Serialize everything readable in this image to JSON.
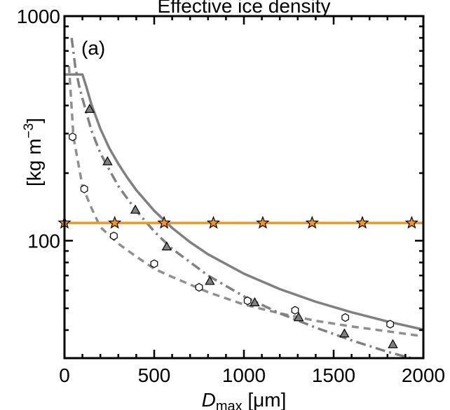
{
  "chart_data": {
    "type": "line",
    "title": "Effective ice density",
    "panel_label": "(a)",
    "xlabel": {
      "main": "D",
      "sub": "max",
      "unit": " [μm]"
    },
    "ylabel": {
      "prefix": "[kg m",
      "exp": "−3",
      "suffix": "]"
    },
    "xlim": [
      0,
      2000
    ],
    "ylim": [
      30,
      1000
    ],
    "yscale": "log",
    "grid": false,
    "x_ticks": [
      "0",
      "500",
      "1000",
      "1500",
      "2000"
    ],
    "x_tick_values": [
      0,
      500,
      1000,
      1500,
      2000
    ],
    "y_ticks": [
      "100",
      "1000"
    ],
    "y_tick_values": [
      100,
      1000
    ],
    "colors": {
      "solid": "#808080",
      "dashed": "#909090",
      "dashdot": "#808080",
      "orange": "#f7931e",
      "triangle_fill": "#808080"
    },
    "series": [
      {
        "style": "solid",
        "x": [
          0,
          60,
          100,
          120,
          150,
          200,
          250,
          300,
          350,
          400,
          500,
          600,
          700,
          800,
          1000,
          1200,
          1400,
          1600,
          1800,
          2000
        ],
        "y": [
          550,
          550,
          550,
          490,
          405,
          315,
          258,
          220,
          191,
          168,
          136,
          114,
          98.5,
          87.0,
          71.3,
          60.9,
          53.5,
          48.0,
          43.7,
          40.2
        ]
      },
      {
        "style": "dashed",
        "x": [
          25,
          50,
          100,
          150,
          200,
          300,
          400,
          500,
          600,
          800,
          1000,
          1200,
          1400,
          1600,
          1800,
          2000
        ],
        "y": [
          600,
          290,
          175,
          140,
          115,
          97,
          85,
          75,
          69,
          59,
          52,
          47.5,
          44,
          41.5,
          39.5,
          37.5
        ]
      },
      {
        "style": "dashdot",
        "x": [
          40,
          60,
          80,
          100,
          150,
          200,
          300,
          400,
          500,
          600,
          800,
          1000,
          1200,
          1400,
          1600,
          1800,
          2000
        ],
        "y": [
          800,
          595,
          495,
          430,
          310,
          245,
          175,
          136,
          110,
          92,
          70,
          56.5,
          47.5,
          41,
          36,
          32,
          29
        ]
      },
      {
        "style": "orange",
        "x": [
          0,
          2000
        ],
        "y": [
          120,
          120
        ]
      }
    ],
    "markers": {
      "hexagon": {
        "x": [
          45,
          110,
          275,
          500,
          750,
          1020,
          1285,
          1565,
          1815
        ],
        "y": [
          290,
          170,
          105,
          79,
          62,
          54,
          49,
          45.5,
          42.5
        ]
      },
      "triangle": {
        "x": [
          140,
          240,
          395,
          570,
          810,
          1060,
          1305,
          1560,
          1830
        ],
        "y": [
          385,
          225,
          137,
          94,
          66,
          53,
          45.5,
          38.5,
          34.5
        ]
      },
      "star": {
        "x": [
          0,
          280,
          555,
          830,
          1105,
          1380,
          1660,
          1935
        ],
        "y": [
          120,
          120,
          120,
          120,
          120,
          120,
          120,
          120
        ]
      }
    }
  }
}
